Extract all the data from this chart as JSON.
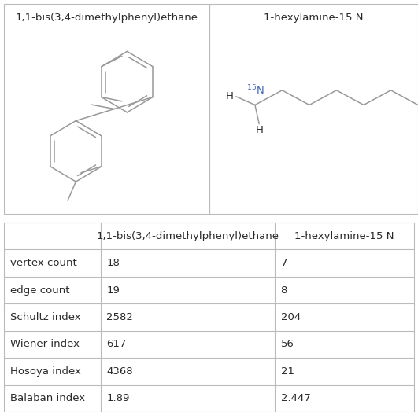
{
  "col1_header": "1,1-bis(3,4-dimethylphenyl)ethane",
  "col2_header": "1-hexylamine-15 N",
  "row_labels": [
    "vertex count",
    "edge count",
    "Schultz index",
    "Wiener index",
    "Hosoya index",
    "Balaban index"
  ],
  "col1_values": [
    "18",
    "19",
    "2582",
    "617",
    "4368",
    "1.89"
  ],
  "col2_values": [
    "7",
    "8",
    "204",
    "56",
    "21",
    "2.447"
  ],
  "bg_color": "#ffffff",
  "text_color": "#2a2a2a",
  "border_color": "#bbbbbb",
  "header_fontsize": 9.5,
  "cell_fontsize": 9.5,
  "n_label_color": "#4466bb",
  "bond_color": "#999999",
  "bond_lw": 1.1
}
